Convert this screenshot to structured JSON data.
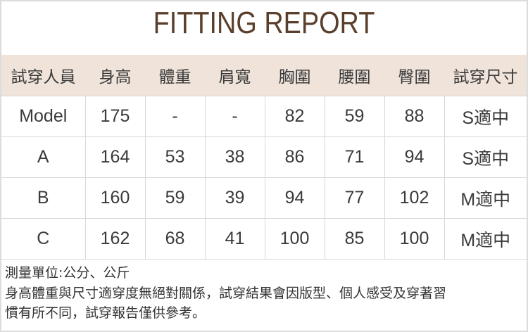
{
  "title": "FITTING REPORT",
  "headers": [
    "試穿人員",
    "身高",
    "體重",
    "肩寬",
    "胸圍",
    "腰圍",
    "臀圍",
    "試穿尺寸"
  ],
  "rows": [
    [
      "Model",
      "175",
      "-",
      "-",
      "82",
      "59",
      "88",
      "S適中"
    ],
    [
      "A",
      "164",
      "53",
      "38",
      "86",
      "71",
      "94",
      "S適中"
    ],
    [
      "B",
      "160",
      "59",
      "39",
      "94",
      "77",
      "102",
      "M適中"
    ],
    [
      "C",
      "162",
      "68",
      "41",
      "100",
      "85",
      "100",
      "M適中"
    ]
  ],
  "notes": [
    "測量單位:公分、公斤",
    "身高體重與尺寸適穿度無絕對關係，試穿結果會因版型、個人感受及穿著習",
    "慣有所不同，試穿報告僅供參考。"
  ],
  "colors": {
    "title": "#5a3f2c",
    "header_bg": "#efe3da"
  }
}
